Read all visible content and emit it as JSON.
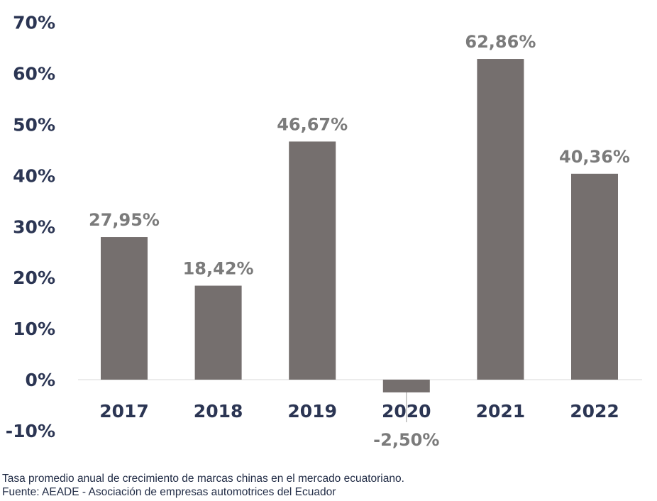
{
  "chart_data": {
    "type": "bar",
    "title": "",
    "xlabel": "",
    "ylabel": "",
    "categories": [
      "2017",
      "2018",
      "2019",
      "2020",
      "2021",
      "2022"
    ],
    "values": [
      27.95,
      18.42,
      46.67,
      -2.5,
      62.86,
      40.36
    ],
    "data_labels": [
      "27,95%",
      "18,42%",
      "46,67%",
      "-2,50%",
      "62,86%",
      "40,36%"
    ],
    "ylim": [
      -10,
      70
    ],
    "yticks": [
      70,
      60,
      50,
      40,
      30,
      20,
      10,
      0,
      -10
    ],
    "ytick_labels": [
      "70%",
      "60%",
      "50%",
      "40%",
      "30%",
      "20%",
      "10%",
      "0%",
      "-10%"
    ],
    "grid": false,
    "legend": "none",
    "colors": {
      "bar": "#756f6e",
      "axis_text": "#2b3553",
      "data_label": "#7b7b7b",
      "baseline": "#d9d9d9"
    }
  },
  "captions": {
    "line1": "Tasa promedio anual de crecimiento de marcas chinas en el mercado ecuatoriano.",
    "line2": "Fuente: AEADE - Asociación de empresas automotrices del Ecuador"
  }
}
